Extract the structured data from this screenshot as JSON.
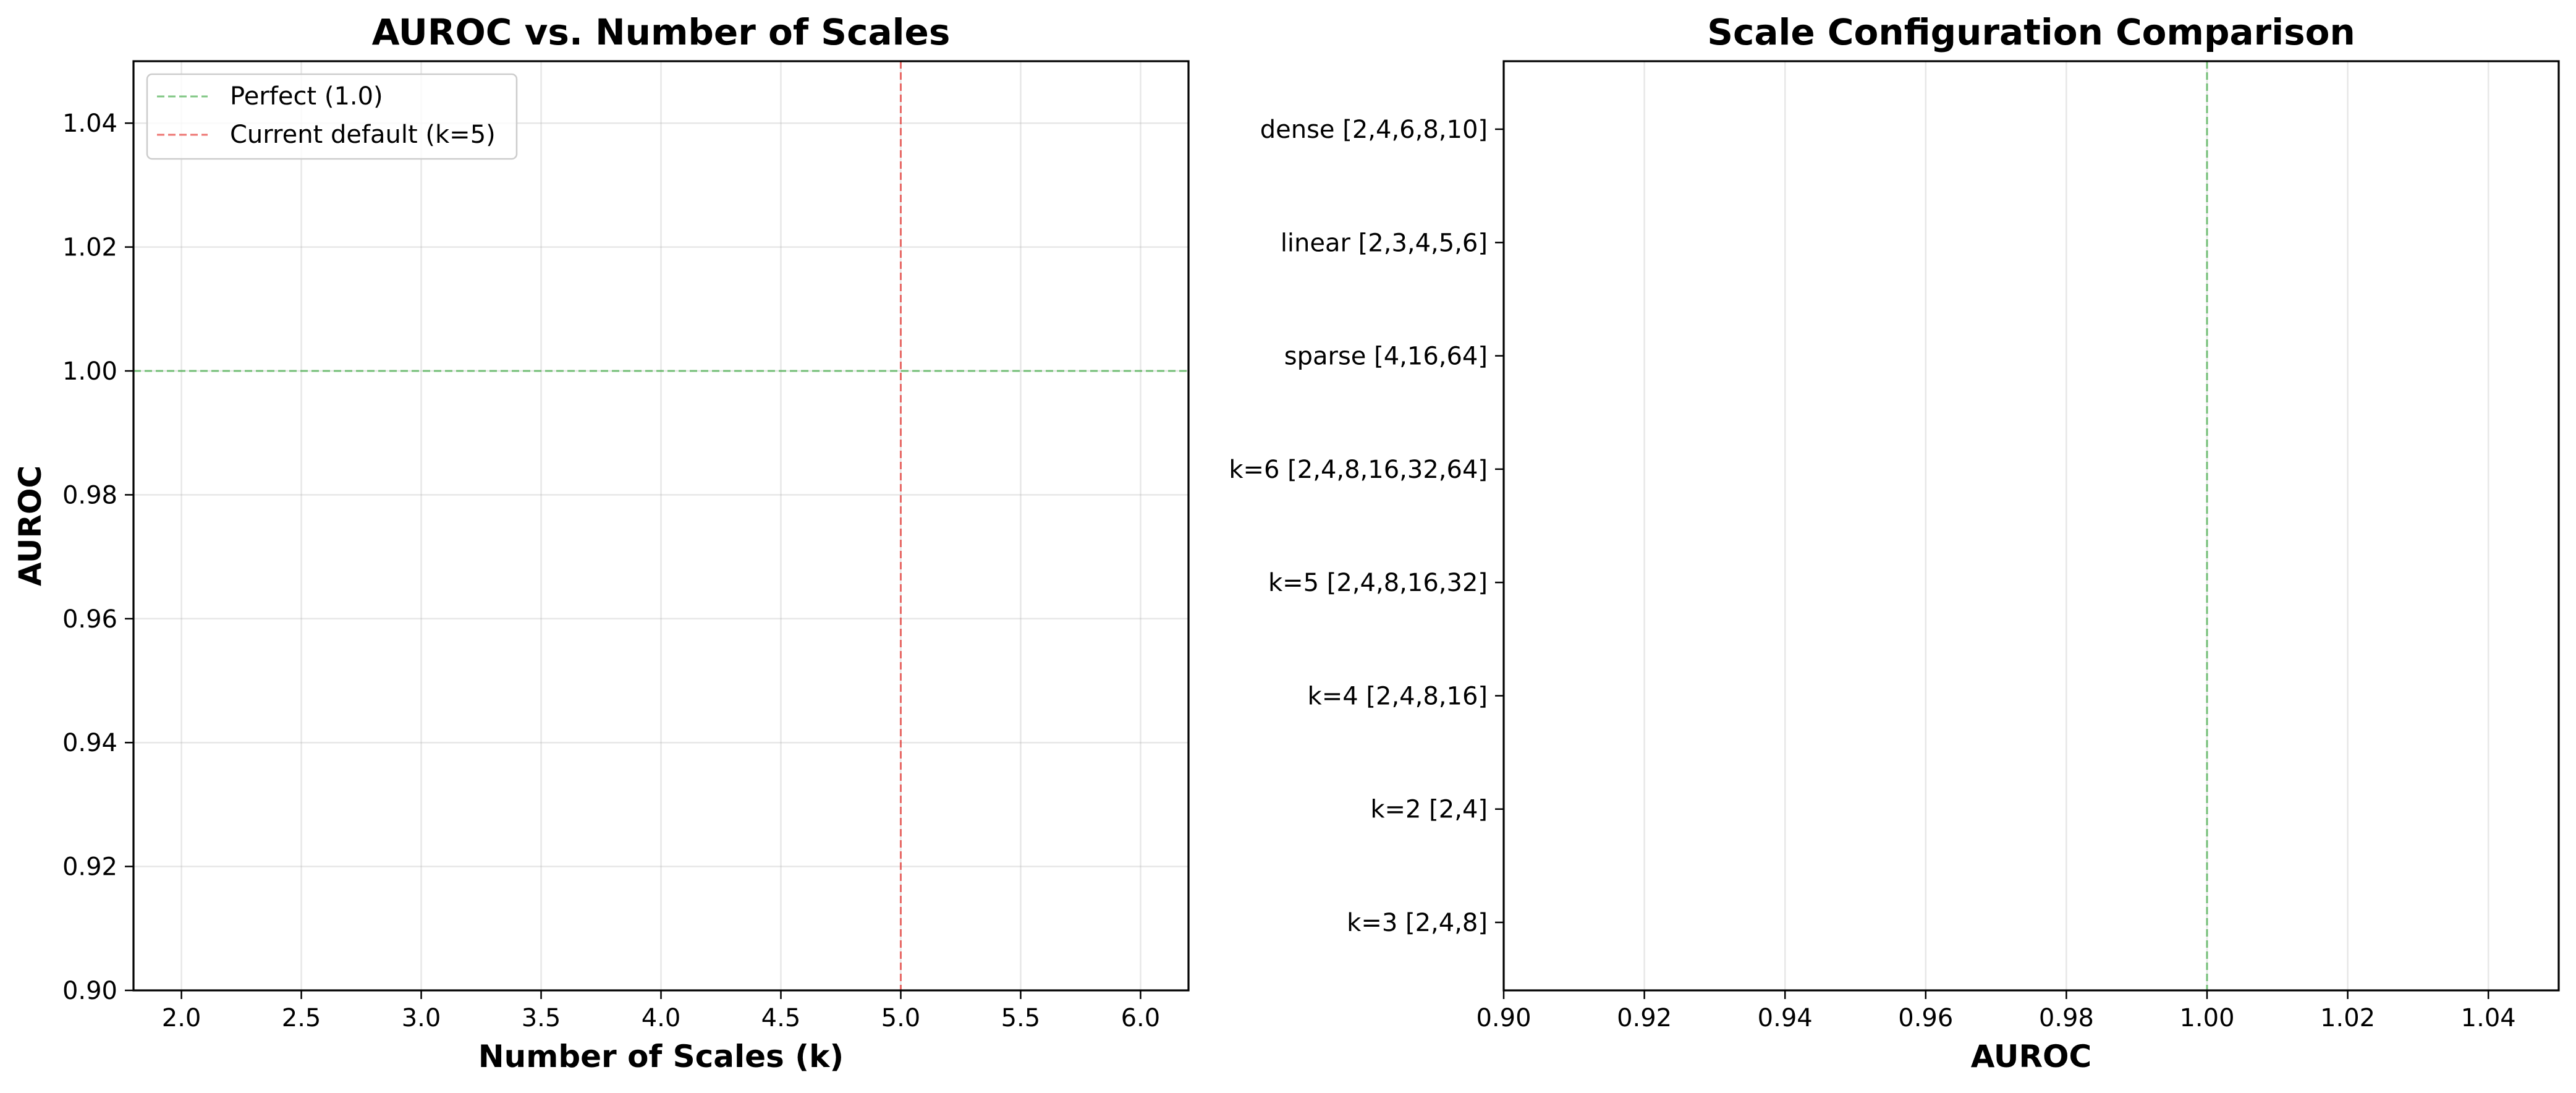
{
  "chart_data": [
    {
      "type": "line",
      "title": "AUROC vs. Number of Scales",
      "xlabel": "Number of Scales (k)",
      "ylabel": "AUROC",
      "xlim": [
        1.8,
        6.2
      ],
      "ylim": [
        0.9,
        1.05
      ],
      "xticks": [
        "2.0",
        "2.5",
        "3.0",
        "3.5",
        "4.0",
        "4.5",
        "5.0",
        "5.5",
        "6.0"
      ],
      "yticks": [
        "0.90",
        "0.92",
        "0.94",
        "0.96",
        "0.98",
        "1.00",
        "1.02",
        "1.04"
      ],
      "grid": true,
      "legend_position": "top-left",
      "series": [],
      "reference_lines": [
        {
          "orientation": "horizontal",
          "value": 1.0,
          "label": "Perfect (1.0)",
          "color": "#4caf50",
          "style": "dashed"
        },
        {
          "orientation": "vertical",
          "value": 5,
          "label": "Current default (k=5)",
          "color": "#e53935",
          "style": "dashed"
        }
      ]
    },
    {
      "type": "bar",
      "orientation": "horizontal",
      "title": "Scale Configuration Comparison",
      "xlabel": "AUROC",
      "ylabel": "",
      "xlim": [
        0.9,
        1.05
      ],
      "xticks": [
        "0.90",
        "0.92",
        "0.94",
        "0.96",
        "0.98",
        "1.00",
        "1.02",
        "1.04"
      ],
      "categories": [
        "k=3 [2,4,8]",
        "k=2 [2,4]",
        "k=4 [2,4,8,16]",
        "k=5 [2,4,8,16,32]",
        "k=6 [2,4,8,16,32,64]",
        "sparse [4,16,64]",
        "linear [2,3,4,5,6]",
        "dense [2,4,6,8,10]"
      ],
      "grid": true,
      "reference_lines": [
        {
          "orientation": "vertical",
          "value": 1.0,
          "color": "#4caf50",
          "style": "dashed"
        }
      ]
    }
  ]
}
